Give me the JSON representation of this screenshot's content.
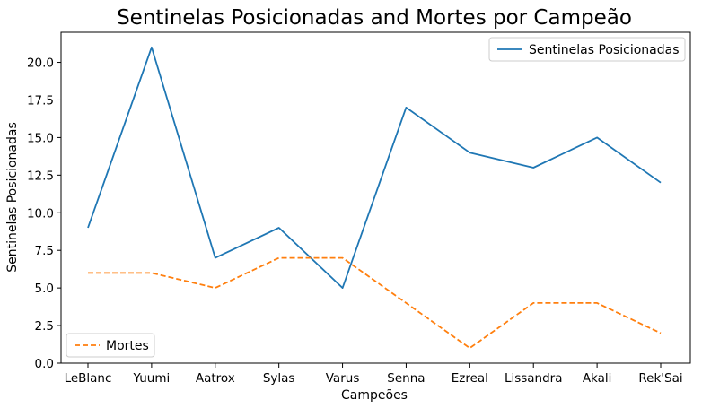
{
  "chart_data": {
    "type": "line",
    "title": "Sentinelas Posicionadas and Mortes por Campeão",
    "xlabel": "Campeões",
    "ylabel": "Sentinelas Posicionadas",
    "categories": [
      "LeBlanc",
      "Yuumi",
      "Aatrox",
      "Sylas",
      "Varus",
      "Senna",
      "Ezreal",
      "Lissandra",
      "Akali",
      "Rek'Sai"
    ],
    "ylim": [
      0,
      22
    ],
    "yticks": [
      "0.0",
      "2.5",
      "5.0",
      "7.5",
      "10.0",
      "12.5",
      "15.0",
      "17.5",
      "20.0"
    ],
    "grid": false,
    "series": [
      {
        "name": "Sentinelas Posicionadas",
        "values": [
          9,
          21,
          7,
          9,
          5,
          17,
          14,
          13,
          15,
          12
        ],
        "color": "#1f77b4",
        "style": "solid",
        "legend": "top-right"
      },
      {
        "name": "Mortes",
        "values": [
          6,
          6,
          5,
          7,
          7,
          4,
          1,
          4,
          4,
          2
        ],
        "color": "#ff7f0e",
        "style": "dashed",
        "legend": "bottom-left"
      }
    ]
  }
}
